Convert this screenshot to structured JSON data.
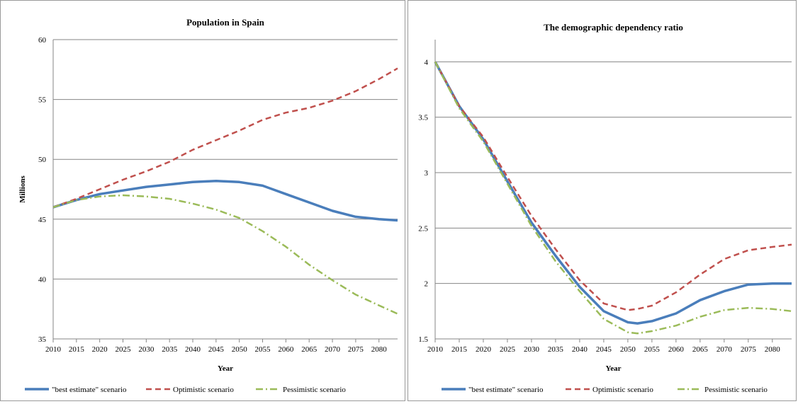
{
  "chart_data": [
    {
      "type": "line",
      "title": "Population in Spain",
      "xlabel": "Year",
      "ylabel": "Millions",
      "xlim": [
        2010,
        2084
      ],
      "ylim": [
        35,
        60
      ],
      "yticks": [
        35,
        40,
        45,
        50,
        55,
        60
      ],
      "xticks": [
        2010,
        2015,
        2020,
        2025,
        2030,
        2035,
        2040,
        2045,
        2050,
        2055,
        2060,
        2065,
        2070,
        2075,
        2080
      ],
      "grid": "horizontal",
      "legend_position": "bottom",
      "series": [
        {
          "name": "\"best estimate\" scenario",
          "color": "#4a7ebb",
          "style": "solid",
          "x": [
            2010,
            2015,
            2020,
            2025,
            2030,
            2035,
            2040,
            2045,
            2050,
            2055,
            2060,
            2065,
            2070,
            2075,
            2080,
            2084
          ],
          "y": [
            46.0,
            46.6,
            47.1,
            47.4,
            47.7,
            47.9,
            48.1,
            48.2,
            48.1,
            47.8,
            47.1,
            46.4,
            45.7,
            45.2,
            45.0,
            44.9
          ]
        },
        {
          "name": "Optimistic scenario",
          "color": "#c0504d",
          "style": "dashed",
          "x": [
            2010,
            2015,
            2020,
            2025,
            2030,
            2035,
            2040,
            2045,
            2050,
            2055,
            2060,
            2065,
            2070,
            2075,
            2080,
            2084
          ],
          "y": [
            46.0,
            46.7,
            47.5,
            48.3,
            49.0,
            49.8,
            50.8,
            51.6,
            52.4,
            53.3,
            53.9,
            54.3,
            54.9,
            55.7,
            56.7,
            57.6
          ]
        },
        {
          "name": "Pessimistic scenario",
          "color": "#9bbb59",
          "style": "dashdot",
          "x": [
            2010,
            2015,
            2020,
            2025,
            2030,
            2035,
            2040,
            2045,
            2050,
            2055,
            2060,
            2065,
            2070,
            2075,
            2080,
            2084
          ],
          "y": [
            46.0,
            46.6,
            46.9,
            47.0,
            46.9,
            46.7,
            46.3,
            45.8,
            45.1,
            44.0,
            42.7,
            41.2,
            39.9,
            38.7,
            37.8,
            37.1
          ]
        }
      ]
    },
    {
      "type": "line",
      "title": "The demographic dependency ratio",
      "xlabel": "Year",
      "ylabel": "",
      "xlim": [
        2010,
        2084
      ],
      "ylim": [
        1.5,
        4.2
      ],
      "yticks": [
        1.5,
        2,
        2.5,
        3,
        3.5,
        4
      ],
      "xticks": [
        2010,
        2015,
        2020,
        2025,
        2030,
        2035,
        2040,
        2045,
        2050,
        2055,
        2060,
        2065,
        2070,
        2075,
        2080
      ],
      "grid": "horizontal",
      "legend_position": "bottom",
      "series": [
        {
          "name": "\"best estimate\" scenario",
          "color": "#4a7ebb",
          "style": "solid",
          "x": [
            2010,
            2015,
            2020,
            2025,
            2030,
            2035,
            2040,
            2045,
            2050,
            2052,
            2055,
            2060,
            2065,
            2070,
            2075,
            2080,
            2084
          ],
          "y": [
            4.0,
            3.6,
            3.3,
            2.92,
            2.55,
            2.25,
            1.97,
            1.75,
            1.65,
            1.64,
            1.66,
            1.73,
            1.85,
            1.93,
            1.99,
            2.0,
            2.0
          ]
        },
        {
          "name": "Optimistic scenario",
          "color": "#c0504d",
          "style": "dashed",
          "x": [
            2010,
            2015,
            2020,
            2025,
            2030,
            2035,
            2040,
            2045,
            2050,
            2052,
            2055,
            2060,
            2065,
            2070,
            2075,
            2080,
            2084
          ],
          "y": [
            4.0,
            3.6,
            3.32,
            2.96,
            2.61,
            2.31,
            2.03,
            1.82,
            1.76,
            1.77,
            1.8,
            1.92,
            2.08,
            2.22,
            2.3,
            2.33,
            2.35
          ]
        },
        {
          "name": "Pessimistic scenario",
          "color": "#9bbb59",
          "style": "dashdot",
          "x": [
            2010,
            2015,
            2020,
            2025,
            2030,
            2035,
            2040,
            2045,
            2050,
            2052,
            2055,
            2060,
            2065,
            2070,
            2075,
            2080,
            2084
          ],
          "y": [
            4.0,
            3.58,
            3.28,
            2.9,
            2.52,
            2.2,
            1.93,
            1.68,
            1.56,
            1.55,
            1.57,
            1.62,
            1.7,
            1.76,
            1.78,
            1.77,
            1.75
          ]
        }
      ]
    }
  ]
}
